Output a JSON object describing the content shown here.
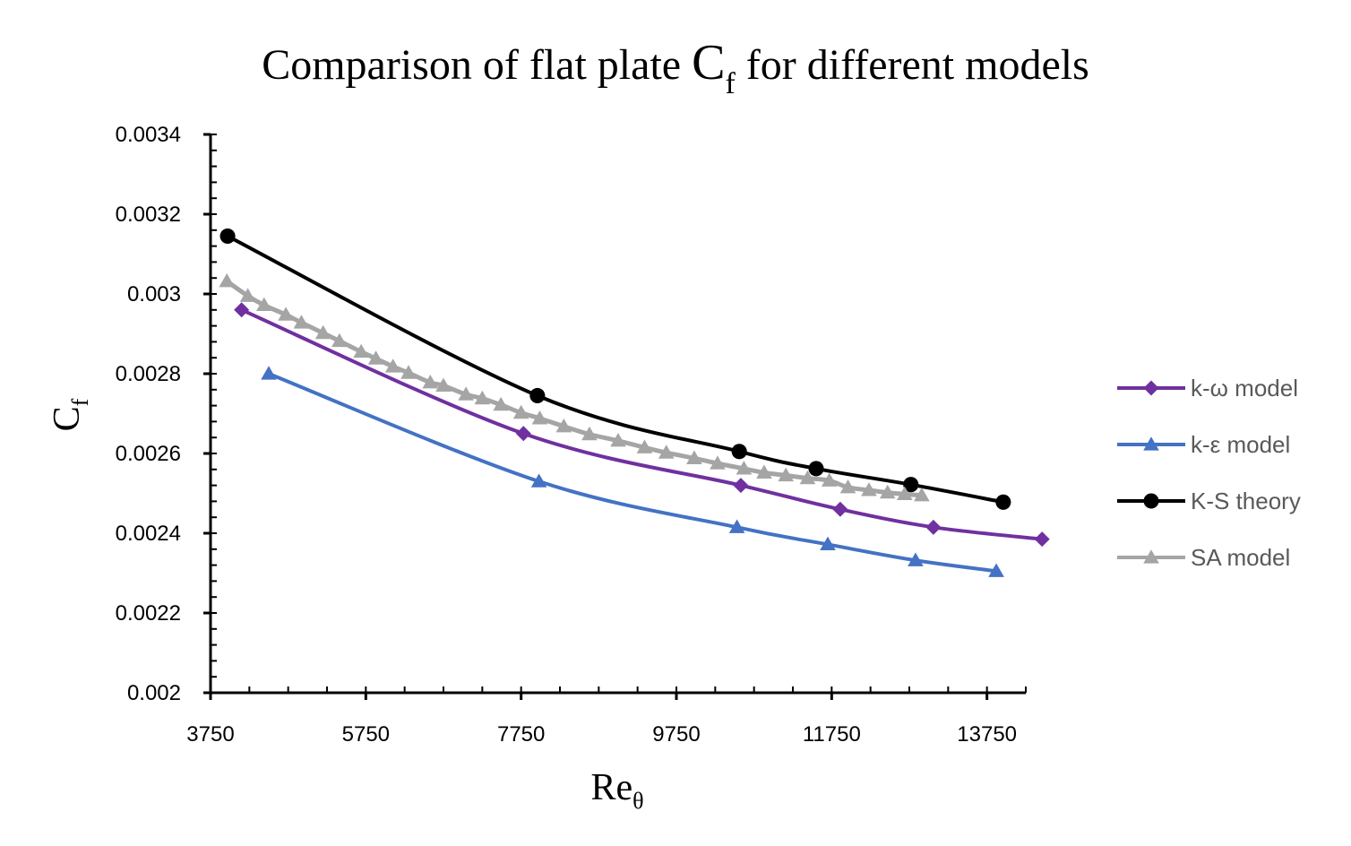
{
  "chart_data": {
    "type": "line",
    "title": {
      "prefix": "Comparison of flat plate ",
      "symbol": "C",
      "symbol_sub": "f",
      "suffix": " for different models"
    },
    "xlabel": {
      "main": "Re",
      "sub": "θ"
    },
    "ylabel": {
      "main": "C",
      "sub": "f"
    },
    "xlim": [
      3750,
      14250
    ],
    "ylim": [
      0.002,
      0.0034
    ],
    "x_ticks": [
      3750,
      5750,
      7750,
      9750,
      11750,
      13750
    ],
    "x_tick_labels": [
      "3750",
      "5750",
      "7750",
      "9750",
      "11750",
      "13750"
    ],
    "y_ticks": [
      0.002,
      0.0022,
      0.0024,
      0.0026,
      0.0028,
      0.003,
      0.0032,
      0.0034
    ],
    "y_tick_labels": [
      "0.002",
      "0.0022",
      "0.0024",
      "0.0026",
      "0.0028",
      "0.003",
      "0.0032",
      "0.0034"
    ],
    "grid": false,
    "legend_position": "right",
    "series": [
      {
        "name": "k-ω model",
        "color": "#7030a0",
        "marker": "diamond",
        "x": [
          4150,
          7780,
          10580,
          11860,
          13060,
          14460
        ],
        "y": [
          0.00296,
          0.00265,
          0.00252,
          0.00246,
          0.002415,
          0.002385
        ]
      },
      {
        "name": "k-ε model",
        "color": "#4472c4",
        "marker": "triangle",
        "x": [
          4500,
          7980,
          10530,
          11700,
          12830,
          13870
        ],
        "y": [
          0.0028,
          0.00253,
          0.002415,
          0.002372,
          0.002332,
          0.002305
        ]
      },
      {
        "name": "K-S theory",
        "color": "#000000",
        "marker": "circle",
        "x": [
          3970,
          7960,
          10560,
          11550,
          12770,
          13960
        ],
        "y": [
          0.003145,
          0.002745,
          0.002605,
          0.002562,
          0.002522,
          0.002478
        ]
      },
      {
        "name": "SA model",
        "color": "#a5a5a5",
        "marker": "triangle",
        "x": [
          3960,
          4230,
          4440,
          4720,
          4920,
          5200,
          5410,
          5690,
          5880,
          6100,
          6300,
          6580,
          6750,
          7040,
          7250,
          7490,
          7750,
          7990,
          8300,
          8630,
          9000,
          9340,
          9620,
          9980,
          10280,
          10620,
          10880,
          11160,
          11440,
          11720,
          11960,
          12230,
          12470,
          12690,
          12910
        ],
        "y": [
          0.003032,
          0.002995,
          0.002972,
          0.002948,
          0.002928,
          0.002902,
          0.002882,
          0.002855,
          0.002838,
          0.002818,
          0.002802,
          0.002778,
          0.00277,
          0.002748,
          0.002738,
          0.002722,
          0.002702,
          0.002688,
          0.002668,
          0.002648,
          0.002632,
          0.002615,
          0.002602,
          0.002588,
          0.002575,
          0.002562,
          0.002552,
          0.002545,
          0.002538,
          0.002532,
          0.002515,
          0.002508,
          0.002502,
          0.002498,
          0.002495
        ]
      }
    ]
  }
}
